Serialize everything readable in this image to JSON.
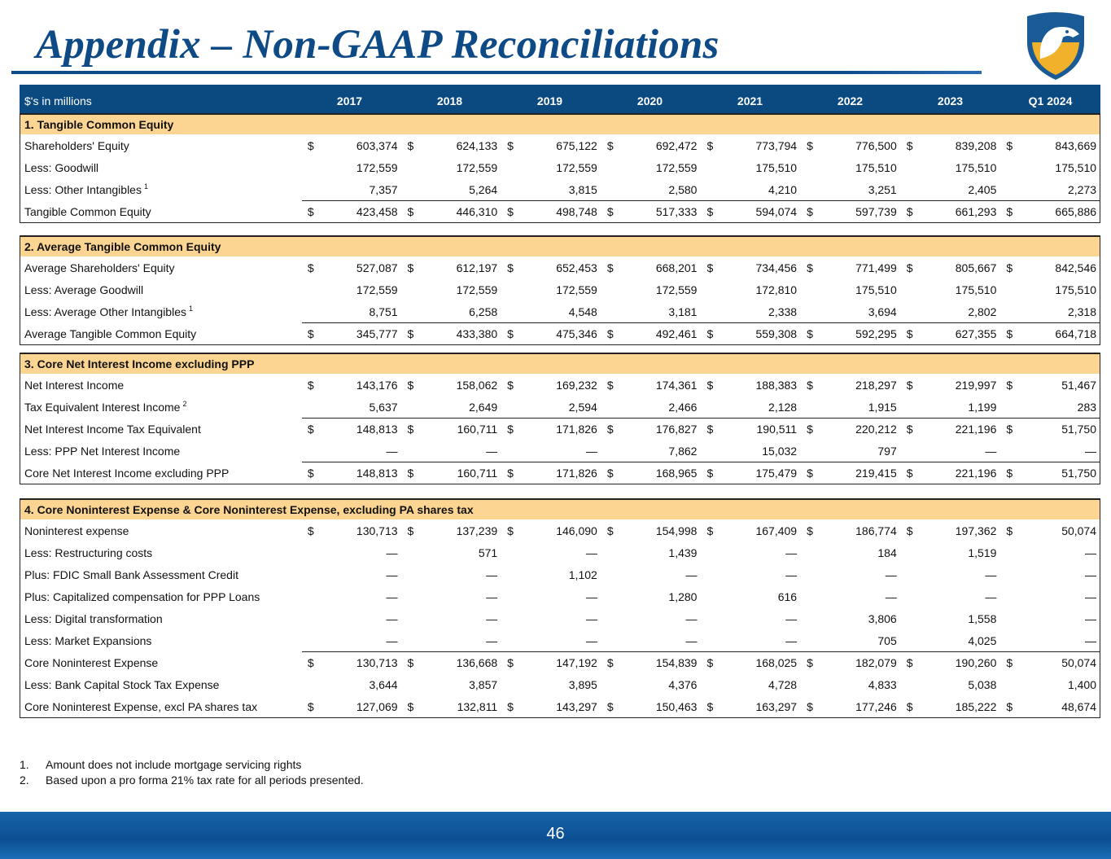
{
  "title": "Appendix – Non-GAAP Reconciliations",
  "header": {
    "label": "$'s in millions",
    "years": [
      "2017",
      "2018",
      "2019",
      "2020",
      "2021",
      "2022",
      "2023",
      "Q1 2024"
    ]
  },
  "sections": [
    {
      "title": "1. Tangible Common Equity",
      "rows": [
        {
          "label": "Shareholders' Equity",
          "dollar": true,
          "values": [
            "603,374",
            "624,133",
            "675,122",
            "692,472",
            "773,794",
            "776,500",
            "839,208",
            "843,669"
          ]
        },
        {
          "label": "Less: Goodwill",
          "values": [
            "172,559",
            "172,559",
            "172,559",
            "172,559",
            "175,510",
            "175,510",
            "175,510",
            "175,510"
          ]
        },
        {
          "label": "Less: Other Intangibles",
          "sup": "1",
          "values": [
            "7,357",
            "5,264",
            "3,815",
            "2,580",
            "4,210",
            "3,251",
            "2,405",
            "2,273"
          ]
        },
        {
          "label": "Tangible Common Equity",
          "dollar": true,
          "total": true,
          "values": [
            "423,458",
            "446,310",
            "498,748",
            "517,333",
            "594,074",
            "597,739",
            "661,293",
            "665,886"
          ]
        }
      ]
    },
    {
      "title": "2. Average Tangible Common Equity",
      "rows": [
        {
          "label": "Average Shareholders' Equity",
          "dollar": true,
          "values": [
            "527,087",
            "612,197",
            "652,453",
            "668,201",
            "734,456",
            "771,499",
            "805,667",
            "842,546"
          ]
        },
        {
          "label": "Less: Average Goodwill",
          "values": [
            "172,559",
            "172,559",
            "172,559",
            "172,559",
            "172,810",
            "175,510",
            "175,510",
            "175,510"
          ]
        },
        {
          "label": "Less: Average Other Intangibles",
          "sup": "1",
          "values": [
            "8,751",
            "6,258",
            "4,548",
            "3,181",
            "2,338",
            "3,694",
            "2,802",
            "2,318"
          ]
        },
        {
          "label": "Average Tangible Common Equity",
          "dollar": true,
          "total": true,
          "values": [
            "345,777",
            "433,380",
            "475,346",
            "492,461",
            "559,308",
            "592,295",
            "627,355",
            "664,718"
          ]
        }
      ]
    },
    {
      "title": "3. Core Net Interest Income excluding PPP",
      "rows": [
        {
          "label": "Net Interest Income",
          "dollar": true,
          "values": [
            "143,176",
            "158,062",
            "169,232",
            "174,361",
            "188,383",
            "218,297",
            "219,997",
            "51,467"
          ]
        },
        {
          "label": "Tax Equivalent Interest Income",
          "sup": "2",
          "values": [
            "5,637",
            "2,649",
            "2,594",
            "2,466",
            "2,128",
            "1,915",
            "1,199",
            "283"
          ]
        },
        {
          "label": "Net Interest Income Tax Equivalent",
          "dollar": true,
          "total": true,
          "values": [
            "148,813",
            "160,711",
            "171,826",
            "176,827",
            "190,511",
            "220,212",
            "221,196",
            "51,750"
          ]
        },
        {
          "label": "Less: PPP Net Interest Income",
          "values": [
            "—",
            "—",
            "—",
            "7,862",
            "15,032",
            "797",
            "—",
            "—"
          ]
        },
        {
          "label": "Core Net Interest Income excluding PPP",
          "dollar": true,
          "total": true,
          "values": [
            "148,813",
            "160,711",
            "171,826",
            "168,965",
            "175,479",
            "219,415",
            "221,196",
            "51,750"
          ]
        }
      ]
    },
    {
      "title": "4. Core Noninterest Expense & Core Noninterest Expense, excluding PA shares tax",
      "rows": [
        {
          "label": "Noninterest expense",
          "dollar": true,
          "values": [
            "130,713",
            "137,239",
            "146,090",
            "154,998",
            "167,409",
            "186,774",
            "197,362",
            "50,074"
          ]
        },
        {
          "label": "Less: Restructuring costs",
          "values": [
            "—",
            "571",
            "—",
            "1,439",
            "—",
            "184",
            "1,519",
            "—"
          ]
        },
        {
          "label": "Plus: FDIC Small Bank Assessment Credit",
          "values": [
            "—",
            "—",
            "1,102",
            "—",
            "—",
            "—",
            "—",
            "—"
          ]
        },
        {
          "label": "Plus: Capitalized compensation for PPP Loans",
          "values": [
            "—",
            "—",
            "—",
            "1,280",
            "616",
            "—",
            "—",
            "—"
          ]
        },
        {
          "label": "Less: Digital transformation",
          "values": [
            "—",
            "—",
            "—",
            "—",
            "—",
            "3,806",
            "1,558",
            "—"
          ]
        },
        {
          "label": "Less: Market Expansions",
          "values": [
            "—",
            "—",
            "—",
            "—",
            "—",
            "705",
            "4,025",
            "—"
          ]
        },
        {
          "label": "Core Noninterest Expense",
          "dollar": true,
          "total": true,
          "values": [
            "130,713",
            "136,668",
            "147,192",
            "154,839",
            "168,025",
            "182,079",
            "190,260",
            "50,074"
          ]
        },
        {
          "label": "Less: Bank Capital Stock Tax Expense",
          "values": [
            "3,644",
            "3,857",
            "3,895",
            "4,376",
            "4,728",
            "4,833",
            "5,038",
            "1,400"
          ]
        },
        {
          "label": "Core Noninterest Expense, excl PA shares tax",
          "dollar": true,
          "values": [
            "127,069",
            "132,811",
            "143,297",
            "150,463",
            "163,297",
            "177,246",
            "185,222",
            "48,674"
          ]
        }
      ]
    }
  ],
  "dollar_sign": "$",
  "footnotes": [
    {
      "num": "1.",
      "text": "Amount does not include mortgage servicing rights"
    },
    {
      "num": "2.",
      "text": "Based upon a pro forma 21% tax rate for all periods presented."
    }
  ],
  "page_number": "46"
}
